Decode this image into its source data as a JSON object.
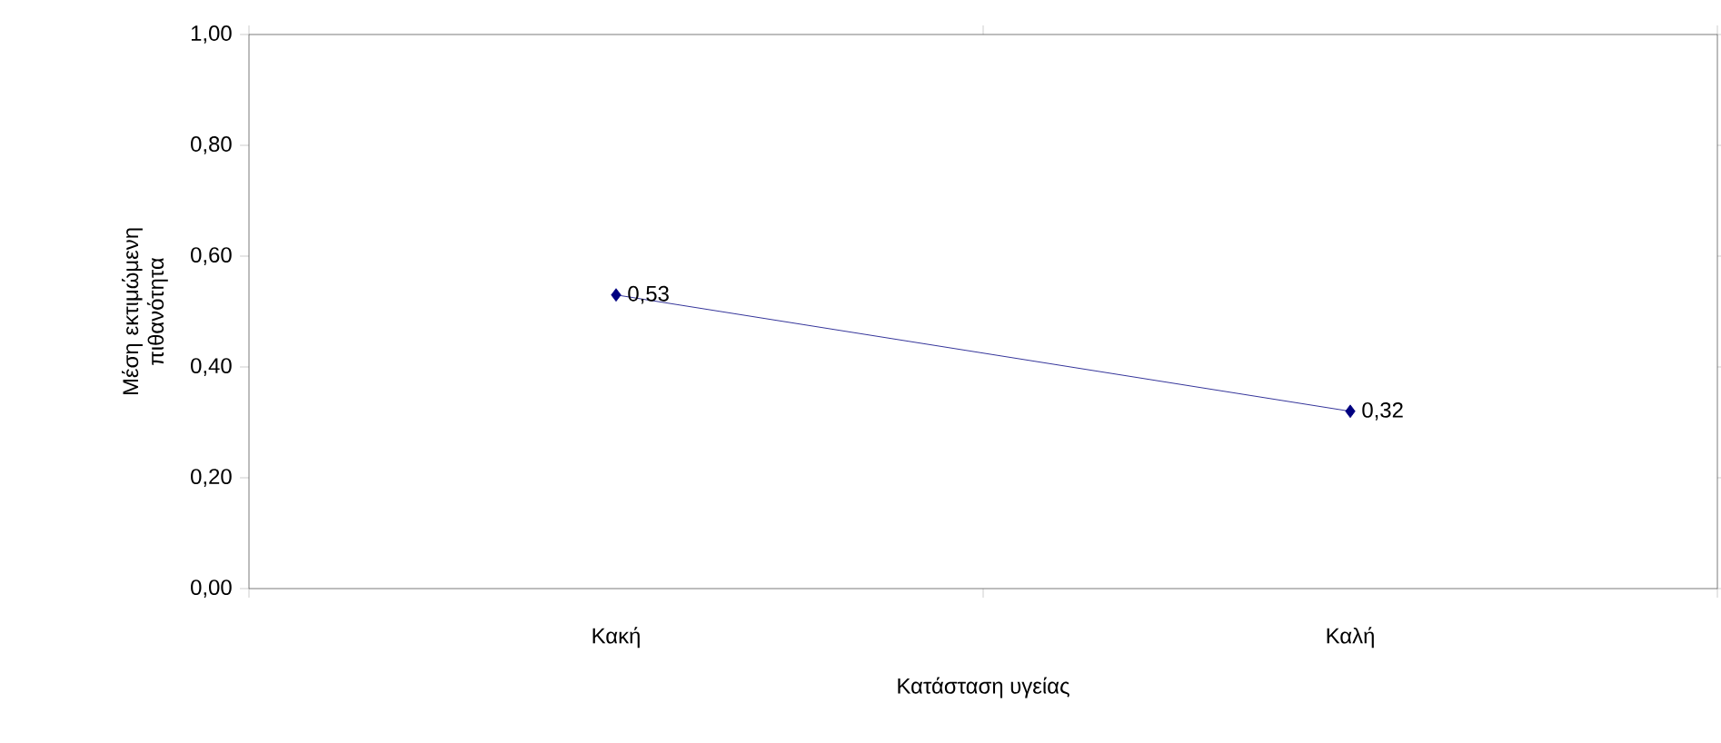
{
  "chart_data": {
    "type": "line",
    "xlabel": "Κατάσταση υγείας",
    "ylabel": "Μέση εκτιμώμενη πιθανότητα",
    "categories": [
      "Κακή",
      "Καλή"
    ],
    "series": [
      {
        "color": "#000080",
        "values": [
          0.53,
          0.32
        ],
        "value_labels": [
          "0,53",
          "0,32"
        ]
      }
    ],
    "ylim": [
      0,
      1
    ],
    "yticks": [
      {
        "value": 0,
        "label": "0,00"
      },
      {
        "value": 0.2,
        "label": "0,20"
      },
      {
        "value": 0.4,
        "label": "0,40"
      },
      {
        "value": 0.6,
        "label": "0,60"
      },
      {
        "value": 0.8,
        "label": "0,80"
      },
      {
        "value": 1,
        "label": "1,00"
      }
    ],
    "marker": "diamond",
    "line_style": "solid"
  }
}
